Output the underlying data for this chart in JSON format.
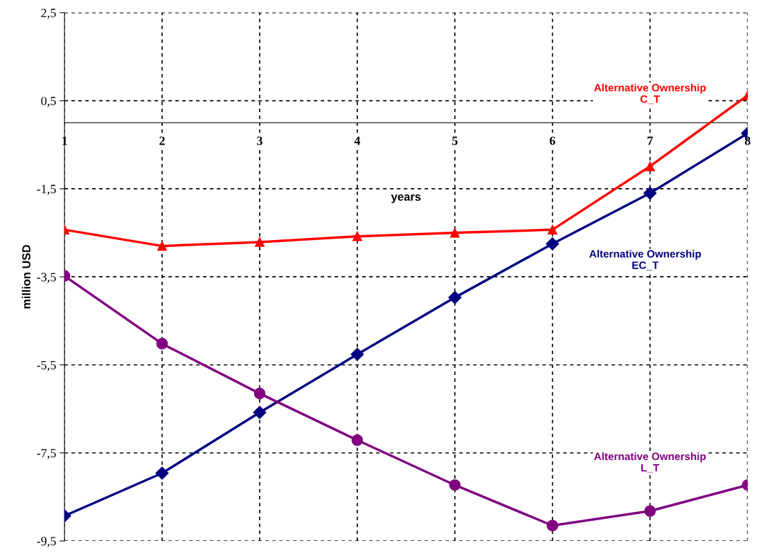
{
  "chart_data": {
    "type": "line",
    "xlabel": "years",
    "ylabel": "million USD",
    "x": [
      1,
      2,
      3,
      4,
      5,
      6,
      7,
      8
    ],
    "xlim": [
      1,
      8
    ],
    "xticks": [
      1,
      2,
      3,
      4,
      5,
      6,
      7,
      8
    ],
    "ylim": [
      -9.5,
      2.5
    ],
    "yticks": [
      {
        "value": 2.5,
        "label": "2,5"
      },
      {
        "value": 0.5,
        "label": "0,5"
      },
      {
        "value": -1.5,
        "label": "-1,5"
      },
      {
        "value": -3.5,
        "label": "-3,5"
      },
      {
        "value": -5.5,
        "label": "-5,5"
      },
      {
        "value": -7.5,
        "label": "-7,5"
      },
      {
        "value": -9.5,
        "label": "-9,5"
      }
    ],
    "grid": true,
    "legend": false,
    "line_style": "solid",
    "series": [
      {
        "name": "Alternative Ownership\nC_T",
        "color": "#ff0000",
        "marker": "triangle",
        "values": [
          -2.43,
          -2.8,
          -2.71,
          -2.58,
          -2.5,
          -2.43,
          -0.99,
          0.62
        ]
      },
      {
        "name": "Alternative Ownership\nEC_T",
        "color": "#000080",
        "marker": "diamond",
        "values": [
          -8.93,
          -7.96,
          -6.58,
          -5.26,
          -3.97,
          -2.75,
          -1.6,
          -0.24
        ]
      },
      {
        "name": "Alternative Ownership\nL_T",
        "color": "#800080",
        "marker": "circle",
        "values": [
          -3.48,
          -5.02,
          -6.15,
          -7.21,
          -8.23,
          -9.15,
          -8.82,
          -8.23
        ]
      }
    ]
  }
}
